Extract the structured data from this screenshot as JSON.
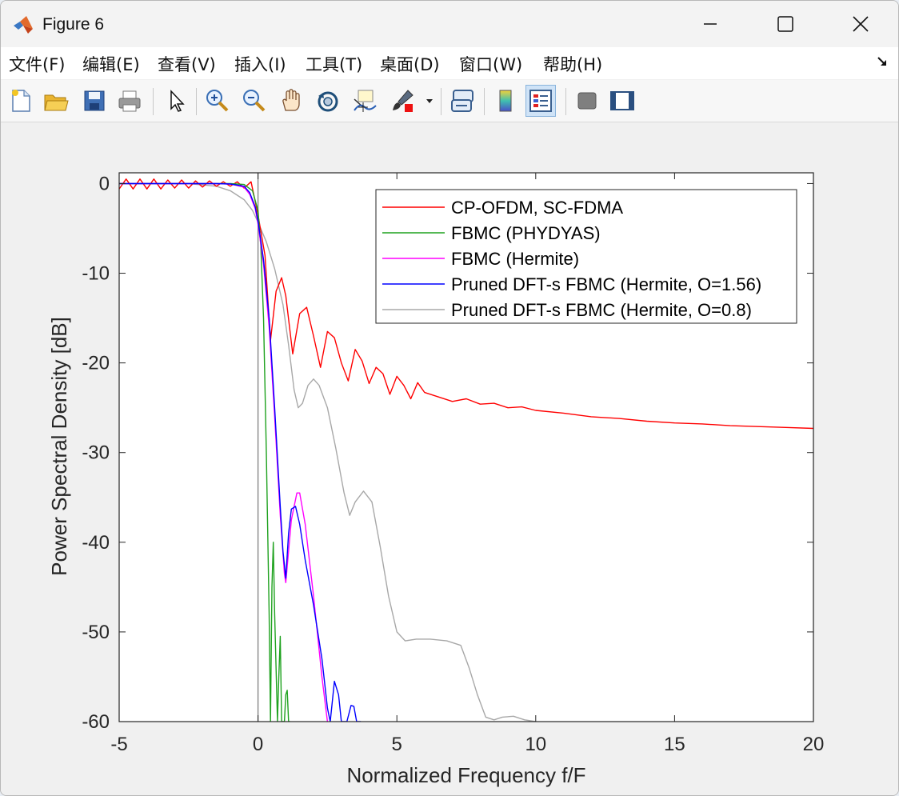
{
  "window": {
    "title": "Figure 6"
  },
  "menu": {
    "items": [
      "文件(F)",
      "编辑(E)",
      "查看(V)",
      "插入(I)",
      "工具(T)",
      "桌面(D)",
      "窗口(W)",
      "帮助(H)"
    ]
  },
  "toolbar": {
    "icons": [
      "new-figure-icon",
      "open-file-icon",
      "save-icon",
      "print-icon",
      "pointer-icon",
      "zoom-in-icon",
      "zoom-out-icon",
      "pan-hand-icon",
      "rotate-3d-icon",
      "data-cursor-icon",
      "brush-icon",
      "brush-dropdown-icon",
      "link-plot-icon",
      "colorbar-icon",
      "legend-icon",
      "hide-plot-tools-icon",
      "show-plot-tools-icon"
    ]
  },
  "colors": {
    "red": "#ff0000",
    "green": "#1fa21f",
    "magenta": "#ff00ff",
    "blue": "#0000ff",
    "gray": "#a8a8a8"
  },
  "chart_data": {
    "type": "line",
    "xlabel": "Normalized Frequency f/F",
    "ylabel": "Power Spectral Density [dB]",
    "xlim": [
      -5,
      20
    ],
    "ylim": [
      -60,
      1.2
    ],
    "xticks": [
      -5,
      0,
      5,
      10,
      15,
      20
    ],
    "yticks": [
      0,
      -10,
      -20,
      -30,
      -40,
      -50,
      -60
    ],
    "xtick_labels": [
      "-5",
      "0",
      "5",
      "10",
      "15",
      "20"
    ],
    "ytick_labels": [
      "0",
      "-10",
      "-20",
      "-30",
      "-40",
      "-50",
      "-60"
    ],
    "grid": false,
    "legend_position": "top-right",
    "vertical_line_x": 0,
    "series": [
      {
        "name": "CP-OFDM, SC-FDMA",
        "color": "red",
        "x": [
          -5,
          -4.75,
          -4.5,
          -4.25,
          -4,
          -3.75,
          -3.5,
          -3.25,
          -3,
          -2.75,
          -2.5,
          -2.25,
          -2,
          -1.75,
          -1.5,
          -1.25,
          -1,
          -0.75,
          -0.5,
          -0.25,
          0,
          0.25,
          0.45,
          0.65,
          0.85,
          1.0,
          1.25,
          1.5,
          1.75,
          2.0,
          2.25,
          2.5,
          2.75,
          3.0,
          3.25,
          3.5,
          3.75,
          4.0,
          4.25,
          4.5,
          4.75,
          5.0,
          5.25,
          5.5,
          5.75,
          6.0,
          6.5,
          7.0,
          7.5,
          8.0,
          8.5,
          9.0,
          9.5,
          10,
          11,
          12,
          13,
          14,
          15,
          16,
          17,
          18,
          19,
          20
        ],
        "y": [
          -0.6,
          0.5,
          -0.6,
          0.5,
          -0.6,
          0.5,
          -0.6,
          0.4,
          -0.5,
          0.4,
          -0.5,
          0.3,
          -0.4,
          0.3,
          -0.3,
          0.2,
          -0.3,
          0.2,
          -0.5,
          0.2,
          -3.5,
          -8,
          -17.5,
          -12,
          -10.5,
          -12.5,
          -19,
          -14.5,
          -13.8,
          -17,
          -20.5,
          -16.5,
          -17.2,
          -20,
          -22,
          -18.5,
          -19.8,
          -22.3,
          -20.5,
          -21.2,
          -23.5,
          -21.5,
          -22.5,
          -24,
          -22.2,
          -23.3,
          -23.8,
          -24.3,
          -24.0,
          -24.6,
          -24.5,
          -25.0,
          -24.9,
          -25.3,
          -25.6,
          -26.0,
          -26.2,
          -26.5,
          -26.7,
          -26.8,
          -27.0,
          -27.1,
          -27.2,
          -27.3
        ]
      },
      {
        "name": "FBMC (PHYDYAS)",
        "color": "green",
        "x": [
          -5,
          -1,
          -0.5,
          -0.2,
          0,
          0.1,
          0.2,
          0.3,
          0.4,
          0.45,
          0.5,
          0.55,
          0.6,
          0.7,
          0.75,
          0.8,
          0.85,
          0.95,
          1.0,
          1.05,
          1.1,
          1.15
        ],
        "y": [
          0,
          0,
          -0.1,
          -0.8,
          -3,
          -7,
          -15,
          -30,
          -48,
          -60,
          -45,
          -40,
          -48,
          -60,
          -55,
          -50.5,
          -60,
          -60,
          -57,
          -56.5,
          -60,
          -60
        ]
      },
      {
        "name": "FBMC (Hermite)",
        "color": "magenta",
        "x": [
          -5,
          -1.5,
          -1,
          -0.5,
          -0.3,
          -0.1,
          0,
          0.2,
          0.4,
          0.6,
          0.8,
          0.95,
          1.0,
          1.1,
          1.2,
          1.4,
          1.5,
          1.7,
          2.0,
          2.3,
          2.5
        ],
        "y": [
          0,
          0,
          -0.05,
          -0.4,
          -1.2,
          -2.8,
          -4.5,
          -9,
          -16,
          -26,
          -37,
          -43.5,
          -44.5,
          -41,
          -37.5,
          -34.5,
          -34.5,
          -38,
          -46,
          -55,
          -60
        ]
      },
      {
        "name": "Pruned DFT-s FBMC (Hermite, O=1.56)",
        "color": "blue",
        "x": [
          -5,
          -1.5,
          -1,
          -0.5,
          -0.3,
          -0.1,
          0,
          0.2,
          0.4,
          0.6,
          0.8,
          0.9,
          1.0,
          1.1,
          1.2,
          1.35,
          1.5,
          1.7,
          2.0,
          2.3,
          2.5,
          2.6,
          2.75,
          2.9,
          3.0,
          3.2,
          3.35,
          3.45,
          3.55,
          3.7
        ],
        "y": [
          0,
          0,
          -0.05,
          -0.3,
          -1.0,
          -2.6,
          -4.2,
          -8.5,
          -15,
          -25,
          -36,
          -41,
          -44,
          -39,
          -36.3,
          -36,
          -38,
          -42,
          -47,
          -53,
          -58.5,
          -60,
          -55.5,
          -57,
          -60,
          -60,
          -58.2,
          -58.3,
          -60,
          -60
        ]
      },
      {
        "name": "Pruned DFT-s FBMC (Hermite, O=0.8)",
        "color": "gray",
        "x": [
          -5,
          -2.5,
          -1.5,
          -1,
          -0.5,
          -0.2,
          0,
          0.3,
          0.6,
          0.9,
          1.1,
          1.3,
          1.45,
          1.6,
          1.8,
          2.0,
          2.2,
          2.5,
          2.8,
          3.1,
          3.3,
          3.5,
          3.8,
          4.1,
          4.4,
          4.7,
          5.0,
          5.3,
          5.7,
          6.2,
          6.8,
          7.3,
          7.6,
          7.9,
          8.2,
          8.5,
          8.8,
          9.2,
          9.6,
          10.0
        ],
        "y": [
          0,
          0,
          -0.3,
          -0.8,
          -1.8,
          -3.0,
          -4.3,
          -6.5,
          -9.5,
          -13.5,
          -18,
          -23,
          -25,
          -24.5,
          -22.5,
          -21.8,
          -22.5,
          -25,
          -29.5,
          -34.5,
          -37,
          -35.5,
          -34.3,
          -35.5,
          -40.5,
          -46,
          -50,
          -51,
          -50.8,
          -50.8,
          -51,
          -51.5,
          -54,
          -57,
          -59.5,
          -59.8,
          -59.5,
          -59.4,
          -59.8,
          -60
        ]
      }
    ]
  }
}
